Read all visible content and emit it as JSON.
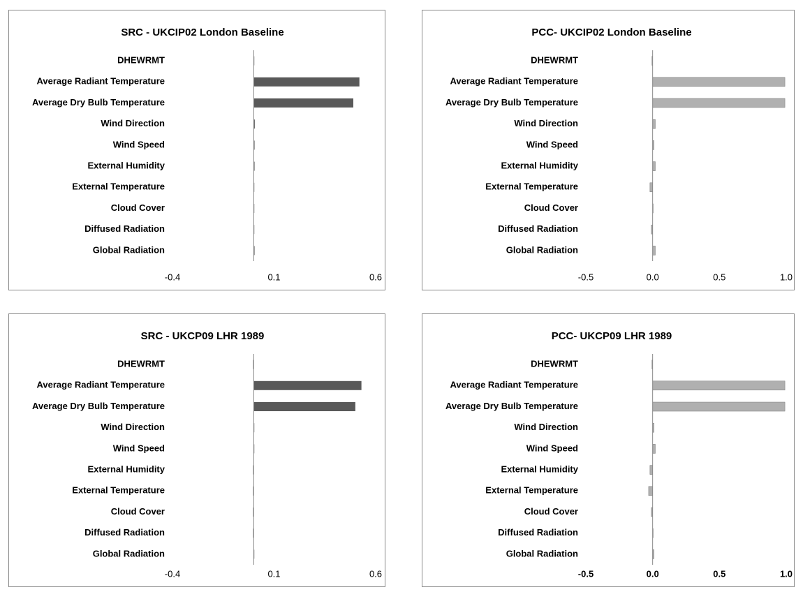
{
  "chart_data": [
    {
      "type": "barh",
      "title": "SRC - UKCIP02 London Baseline",
      "categories": [
        "DHEWRMT",
        "Average Radiant Temperature",
        "Average Dry Bulb Temperature",
        "Wind Direction",
        "Wind Speed",
        "External Humidity",
        "External Temperature",
        "Cloud Cover",
        "Diffused Radiation",
        "Global Radiation"
      ],
      "values": [
        0,
        0.52,
        0.49,
        0.005,
        0.004,
        0.004,
        0,
        0,
        0,
        0.004
      ],
      "color": "#595959",
      "xlim": [
        -0.4,
        0.6
      ],
      "xticks": [
        -0.4,
        0.1,
        0.6
      ]
    },
    {
      "type": "barh",
      "title": "PCC- UKCIP02 London Baseline",
      "categories": [
        "DHEWRMT",
        "Average Radiant Temperature",
        "Average Dry Bulb Temperature",
        "Wind Direction",
        "Wind Speed",
        "External Humidity",
        "External Temperature",
        "Cloud Cover",
        "Diffused Radiation",
        "Global Radiation"
      ],
      "values": [
        -0.005,
        0.99,
        0.99,
        0.02,
        0.01,
        0.02,
        -0.02,
        0,
        -0.01,
        0.02
      ],
      "color": "#b0b0b0",
      "xlim": [
        -0.5,
        1.0
      ],
      "xticks": [
        -0.5,
        {
          "value": 0,
          "label": "0.0"
        },
        0.5,
        {
          "value": 1,
          "label": "1.0"
        }
      ]
    },
    {
      "type": "barh",
      "title": "SRC - UKCP09 LHR  1989",
      "categories": [
        "DHEWRMT",
        "Average Radiant Temperature",
        "Average Dry Bulb Temperature",
        "Wind Direction",
        "Wind Speed",
        "External Humidity",
        "External Temperature",
        "Cloud Cover",
        "Diffused Radiation",
        "Global Radiation"
      ],
      "values": [
        -0.003,
        0.53,
        0.5,
        0,
        0,
        -0.003,
        -0.003,
        -0.003,
        -0.003,
        0
      ],
      "color": "#595959",
      "xlim": [
        -0.4,
        0.6
      ],
      "xticks": [
        -0.4,
        0.1,
        0.6
      ]
    },
    {
      "type": "barh",
      "title": "PCC- UKCP09 LHR  1989",
      "categories": [
        "DHEWRMT",
        "Average Radiant Temperature",
        "Average Dry Bulb Temperature",
        "Wind Direction",
        "Wind Speed",
        "External Humidity",
        "External Temperature",
        "Cloud Cover",
        "Diffused Radiation",
        "Global Radiation"
      ],
      "values": [
        -0.005,
        0.99,
        0.99,
        0.01,
        0.02,
        -0.02,
        -0.03,
        -0.01,
        0,
        0.01
      ],
      "color": "#b0b0b0",
      "xlim": [
        -0.5,
        1.0
      ],
      "xticks": [
        -0.5,
        {
          "value": 0,
          "label": "0.0"
        },
        0.5,
        {
          "value": 1,
          "label": "1.0"
        }
      ],
      "tick_bold": true
    }
  ]
}
